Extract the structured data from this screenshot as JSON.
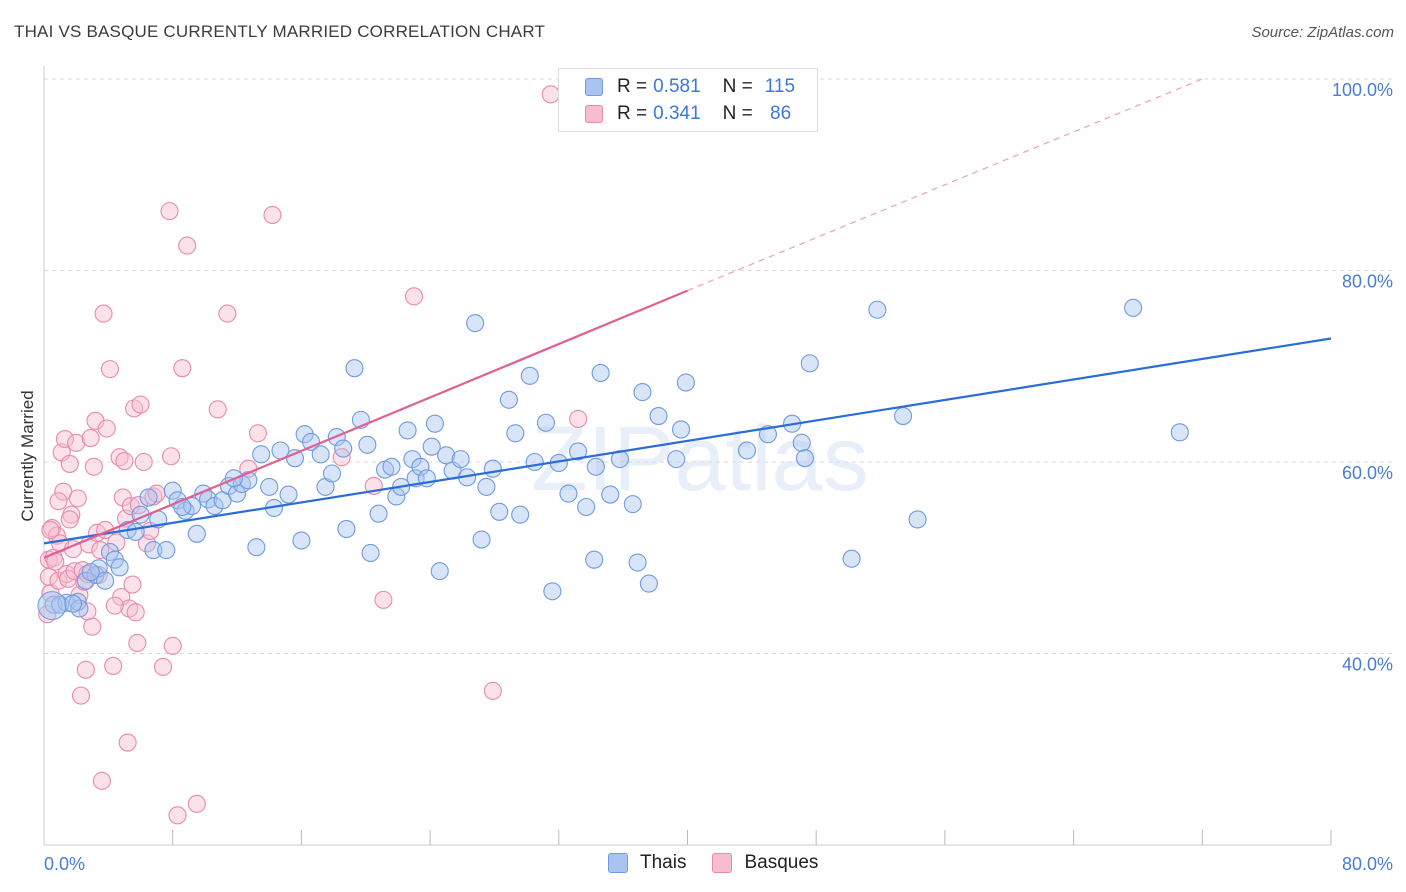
{
  "title": "THAI VS BASQUE CURRENTLY MARRIED CORRELATION CHART",
  "source": "Source: ZipAtlas.com",
  "legend": {
    "rows": [
      {
        "r_label": "R =",
        "r_value": "0.581",
        "n_label": "N =",
        "n_value": "115",
        "color": "#a9c4f0",
        "border": "#6f9be0"
      },
      {
        "r_label": "R =",
        "r_value": "0.341",
        "n_label": "N =",
        "n_value": " 86",
        "color": "#f6bcd0",
        "border": "#e98aab"
      }
    ]
  },
  "bottom_legend": [
    {
      "label": "Thais",
      "color": "#a9c4f0",
      "border": "#6f9be0"
    },
    {
      "label": "Basques",
      "color": "#f6bcd0",
      "border": "#e98aab"
    }
  ],
  "watermark": "ZIPatlas",
  "chart_data": {
    "type": "scatter",
    "title": "THAI VS BASQUE CURRENTLY MARRIED CORRELATION CHART",
    "xlabel": "",
    "ylabel": "Currently Married",
    "xlim": [
      0,
      80
    ],
    "ylim": [
      20,
      100
    ],
    "x_ticks": [
      {
        "value": 0,
        "label": "0.0%"
      },
      {
        "value": 80,
        "label": "80.0%"
      }
    ],
    "y_ticks": [
      {
        "value": 40,
        "label": "40.0%"
      },
      {
        "value": 60,
        "label": "60.0%"
      },
      {
        "value": 80,
        "label": "80.0%"
      },
      {
        "value": 100,
        "label": "100.0%"
      }
    ],
    "grid": true,
    "legend_position": "top-center",
    "series": [
      {
        "name": "Thais",
        "color": "#6f9be0",
        "fill": "#a9c4f0",
        "line_color": "#2a6dd6",
        "trend": [
          [
            0,
            51.5
          ],
          [
            80,
            72.9
          ]
        ],
        "points": [
          [
            0.6,
            45.1
          ],
          [
            1.0,
            45.1
          ],
          [
            1.4,
            45.3
          ],
          [
            2.1,
            45.4
          ],
          [
            2.2,
            44.7
          ],
          [
            2.6,
            47.6
          ],
          [
            3.2,
            48.2
          ],
          [
            3.4,
            48.9
          ],
          [
            3.8,
            47.6
          ],
          [
            4.1,
            50.6
          ],
          [
            4.4,
            49.8
          ],
          [
            4.7,
            49.0
          ],
          [
            5.2,
            52.9
          ],
          [
            5.7,
            52.7
          ],
          [
            6.0,
            54.5
          ],
          [
            6.5,
            56.3
          ],
          [
            6.8,
            50.8
          ],
          [
            7.1,
            54.0
          ],
          [
            7.6,
            50.8
          ],
          [
            8.0,
            57.0
          ],
          [
            8.3,
            56.0
          ],
          [
            8.8,
            54.9
          ],
          [
            9.2,
            55.4
          ],
          [
            9.5,
            52.5
          ],
          [
            9.9,
            56.7
          ],
          [
            10.2,
            56.1
          ],
          [
            10.6,
            55.4
          ],
          [
            11.1,
            56.0
          ],
          [
            11.5,
            57.5
          ],
          [
            12.0,
            56.7
          ],
          [
            12.3,
            57.7
          ],
          [
            12.7,
            58.1
          ],
          [
            13.2,
            51.1
          ],
          [
            13.5,
            60.8
          ],
          [
            14.0,
            57.4
          ],
          [
            14.3,
            55.2
          ],
          [
            14.7,
            61.2
          ],
          [
            15.2,
            56.6
          ],
          [
            15.6,
            60.4
          ],
          [
            16.0,
            51.8
          ],
          [
            16.2,
            62.9
          ],
          [
            16.6,
            62.1
          ],
          [
            17.2,
            60.8
          ],
          [
            17.5,
            57.4
          ],
          [
            17.9,
            58.8
          ],
          [
            18.2,
            62.6
          ],
          [
            18.6,
            61.4
          ],
          [
            18.8,
            53.0
          ],
          [
            19.3,
            69.8
          ],
          [
            19.7,
            64.4
          ],
          [
            20.1,
            61.8
          ],
          [
            20.3,
            50.5
          ],
          [
            20.8,
            54.6
          ],
          [
            21.2,
            59.2
          ],
          [
            21.6,
            59.5
          ],
          [
            21.9,
            56.4
          ],
          [
            22.2,
            57.4
          ],
          [
            22.6,
            63.3
          ],
          [
            22.9,
            60.3
          ],
          [
            23.1,
            58.3
          ],
          [
            23.4,
            59.5
          ],
          [
            23.8,
            58.3
          ],
          [
            24.1,
            61.6
          ],
          [
            24.3,
            64.0
          ],
          [
            24.6,
            48.6
          ],
          [
            25.0,
            60.7
          ],
          [
            25.4,
            59.1
          ],
          [
            25.9,
            60.3
          ],
          [
            26.3,
            58.4
          ],
          [
            26.8,
            74.5
          ],
          [
            27.2,
            51.9
          ],
          [
            27.5,
            57.4
          ],
          [
            27.9,
            59.3
          ],
          [
            28.3,
            54.8
          ],
          [
            28.9,
            66.5
          ],
          [
            29.3,
            63.0
          ],
          [
            29.6,
            54.5
          ],
          [
            30.2,
            69.0
          ],
          [
            30.5,
            60.0
          ],
          [
            31.2,
            64.1
          ],
          [
            31.6,
            46.5
          ],
          [
            32.0,
            59.9
          ],
          [
            32.6,
            56.7
          ],
          [
            33.2,
            61.1
          ],
          [
            33.7,
            55.3
          ],
          [
            34.2,
            49.8
          ],
          [
            34.6,
            69.3
          ],
          [
            34.3,
            59.5
          ],
          [
            35.2,
            56.6
          ],
          [
            35.8,
            60.3
          ],
          [
            36.6,
            55.6
          ],
          [
            36.9,
            49.5
          ],
          [
            37.2,
            67.3
          ],
          [
            37.6,
            47.3
          ],
          [
            38.2,
            64.8
          ],
          [
            39.3,
            60.3
          ],
          [
            39.6,
            63.4
          ],
          [
            39.9,
            68.3
          ],
          [
            43.7,
            61.2
          ],
          [
            45.0,
            62.9
          ],
          [
            46.5,
            64.0
          ],
          [
            47.1,
            62.0
          ],
          [
            47.3,
            60.4
          ],
          [
            47.6,
            70.3
          ],
          [
            50.2,
            49.9
          ],
          [
            51.8,
            75.9
          ],
          [
            53.4,
            64.8
          ],
          [
            54.3,
            54.0
          ],
          [
            67.7,
            76.1
          ],
          [
            70.6,
            63.1
          ],
          [
            1.8,
            45.2
          ],
          [
            2.9,
            48.5
          ],
          [
            11.8,
            58.3
          ],
          [
            8.6,
            55.3
          ]
        ]
      },
      {
        "name": "Basques",
        "color": "#e98aab",
        "fill": "#f6bcd0",
        "line_color": "#e0608f",
        "trend": [
          [
            0,
            50.0
          ],
          [
            40,
            77.9
          ]
        ],
        "trend_extension": [
          [
            40,
            77.9
          ],
          [
            72,
            100.0
          ]
        ],
        "points": [
          [
            0.2,
            44.1
          ],
          [
            0.3,
            49.8
          ],
          [
            0.3,
            48.0
          ],
          [
            0.4,
            46.3
          ],
          [
            0.5,
            53.1
          ],
          [
            0.6,
            50.0
          ],
          [
            0.7,
            49.6
          ],
          [
            0.8,
            52.3
          ],
          [
            0.9,
            47.6
          ],
          [
            1.0,
            51.5
          ],
          [
            1.1,
            61.0
          ],
          [
            1.2,
            56.9
          ],
          [
            1.3,
            62.4
          ],
          [
            1.4,
            48.3
          ],
          [
            1.5,
            47.8
          ],
          [
            1.6,
            59.8
          ],
          [
            1.7,
            54.5
          ],
          [
            1.8,
            50.9
          ],
          [
            1.9,
            48.6
          ],
          [
            2.0,
            62.0
          ],
          [
            2.1,
            56.2
          ],
          [
            2.2,
            46.1
          ],
          [
            2.3,
            35.6
          ],
          [
            2.4,
            48.7
          ],
          [
            2.5,
            47.5
          ],
          [
            2.6,
            38.3
          ],
          [
            2.7,
            44.4
          ],
          [
            2.8,
            51.4
          ],
          [
            2.9,
            62.5
          ],
          [
            3.0,
            42.8
          ],
          [
            3.1,
            59.5
          ],
          [
            3.2,
            64.3
          ],
          [
            3.3,
            52.6
          ],
          [
            3.4,
            48.2
          ],
          [
            3.5,
            50.8
          ],
          [
            3.6,
            26.7
          ],
          [
            3.7,
            75.5
          ],
          [
            3.9,
            63.5
          ],
          [
            4.1,
            69.7
          ],
          [
            4.3,
            38.7
          ],
          [
            4.5,
            51.6
          ],
          [
            4.7,
            60.5
          ],
          [
            4.8,
            45.9
          ],
          [
            4.9,
            56.3
          ],
          [
            5.0,
            60.1
          ],
          [
            5.1,
            54.1
          ],
          [
            5.2,
            30.7
          ],
          [
            5.3,
            44.7
          ],
          [
            5.4,
            55.4
          ],
          [
            5.5,
            47.2
          ],
          [
            5.6,
            65.6
          ],
          [
            5.7,
            44.3
          ],
          [
            5.8,
            41.1
          ],
          [
            5.9,
            55.5
          ],
          [
            6.0,
            66.0
          ],
          [
            6.2,
            60.0
          ],
          [
            6.4,
            51.5
          ],
          [
            6.6,
            52.8
          ],
          [
            6.8,
            56.4
          ],
          [
            7.0,
            56.7
          ],
          [
            7.4,
            38.6
          ],
          [
            7.8,
            86.2
          ],
          [
            7.9,
            60.6
          ],
          [
            8.0,
            40.8
          ],
          [
            8.3,
            23.1
          ],
          [
            8.6,
            69.8
          ],
          [
            8.9,
            82.6
          ],
          [
            9.5,
            24.3
          ],
          [
            10.8,
            65.5
          ],
          [
            11.4,
            75.5
          ],
          [
            12.7,
            59.3
          ],
          [
            13.3,
            63.0
          ],
          [
            14.2,
            85.8
          ],
          [
            18.5,
            60.5
          ],
          [
            20.5,
            57.5
          ],
          [
            21.1,
            45.6
          ],
          [
            23.0,
            77.3
          ],
          [
            27.9,
            36.1
          ],
          [
            31.5,
            98.4
          ],
          [
            33.2,
            64.5
          ],
          [
            0.4,
            52.9
          ],
          [
            0.9,
            55.9
          ],
          [
            1.6,
            54.0
          ],
          [
            2.7,
            48.3
          ],
          [
            3.8,
            52.9
          ],
          [
            4.4,
            45.0
          ]
        ]
      }
    ]
  }
}
